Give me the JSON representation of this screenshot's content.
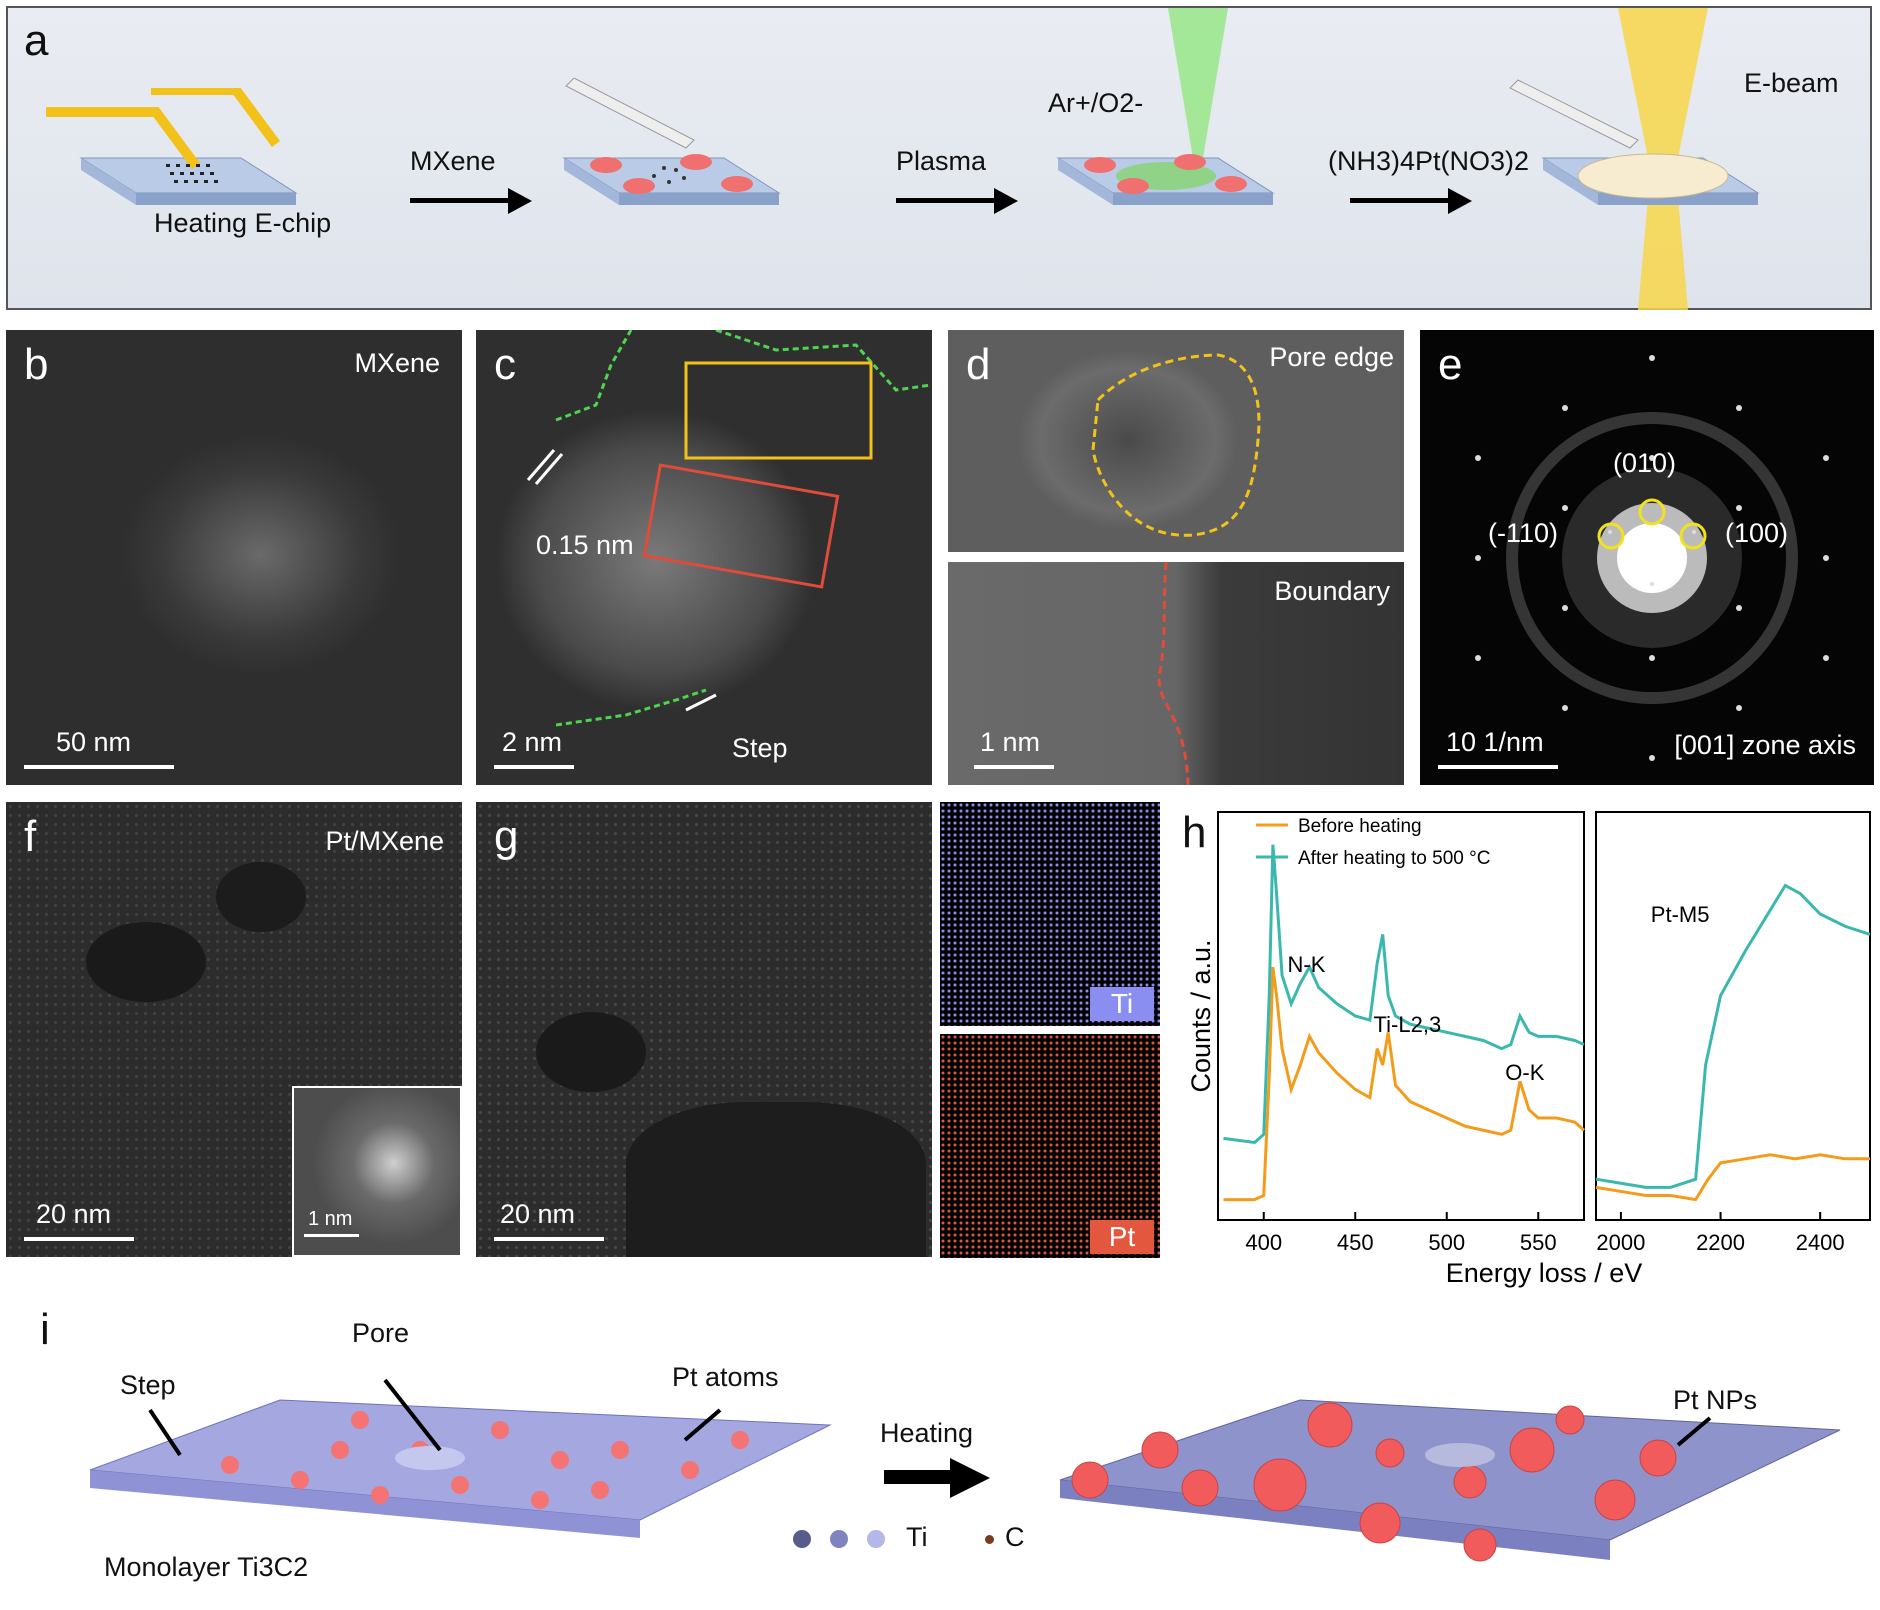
{
  "panel_a": {
    "letter": "a",
    "step_labels": [
      "MXene",
      "Plasma",
      "(NH3)4Pt(NO3)2"
    ],
    "chip_label": "Heating E-chip",
    "plasma_label": "Ar+/O2-",
    "ebeam_label": "E-beam"
  },
  "panel_b": {
    "letter": "b",
    "title": "MXene",
    "scale": "50 nm"
  },
  "panel_c": {
    "letter": "c",
    "spacing": "0.15 nm",
    "step": "Step",
    "scale": "2 nm"
  },
  "panel_d": {
    "letter": "d",
    "top_title": "Pore edge",
    "bottom_title": "Boundary",
    "scale": "1 nm"
  },
  "panel_e": {
    "letter": "e",
    "spots": [
      "(010)",
      "(-110)",
      "(100)"
    ],
    "scale": "10 1/nm",
    "zone": "[001] zone axis"
  },
  "panel_f": {
    "letter": "f",
    "title": "Pt/MXene",
    "scale": "20 nm",
    "inset_scale": "1 nm"
  },
  "panel_g": {
    "letter": "g",
    "scale": "20 nm",
    "map_ti": "Ti",
    "map_pt": "Pt"
  },
  "panel_h": {
    "letter": "h"
  },
  "panel_i": {
    "letter": "i",
    "left_labels": {
      "pore": "Pore",
      "step": "Step",
      "pt_atoms": "Pt atoms",
      "monolayer": "Monolayer Ti3C2"
    },
    "arrow_label": "Heating",
    "legend_ti": "Ti",
    "legend_c": "C",
    "right_labels": {
      "pt_nps": "Pt NPs"
    }
  },
  "colors": {
    "gold": "#f2c21b",
    "orange": "#f39c1c",
    "teal": "#3bb8ad",
    "chip_blue": "#b9cbe6",
    "pink": "#f07070",
    "ti_map": "#8a8ef0",
    "pt_map": "#e2573e"
  },
  "chart_data": [
    {
      "type": "line",
      "title": "",
      "xlabel": "Energy loss / eV",
      "ylabel": "Counts / a.u.",
      "xlim": [
        375,
        575
      ],
      "xticks": [
        400,
        450,
        500,
        550
      ],
      "grid": false,
      "legend": "top-left",
      "annotations": [
        "N-K",
        "Ti-L2,3",
        "O-K"
      ],
      "series": [
        {
          "name": "Before heating",
          "color": "#f39c1c",
          "x": [
            378,
            395,
            400,
            403,
            405,
            407,
            410,
            415,
            420,
            425,
            430,
            440,
            450,
            458,
            462,
            465,
            468,
            472,
            480,
            490,
            500,
            510,
            520,
            530,
            535,
            540,
            545,
            550,
            560,
            570,
            575
          ],
          "y": [
            0.05,
            0.05,
            0.06,
            0.35,
            0.62,
            0.55,
            0.42,
            0.32,
            0.38,
            0.45,
            0.41,
            0.36,
            0.32,
            0.3,
            0.42,
            0.38,
            0.46,
            0.33,
            0.29,
            0.27,
            0.25,
            0.23,
            0.22,
            0.21,
            0.22,
            0.34,
            0.27,
            0.25,
            0.25,
            0.24,
            0.22
          ]
        },
        {
          "name": "After heating to 500 °C",
          "color": "#3bb8ad",
          "x": [
            378,
            395,
            400,
            403,
            405,
            407,
            410,
            415,
            420,
            425,
            430,
            440,
            450,
            458,
            462,
            465,
            468,
            472,
            480,
            490,
            500,
            510,
            520,
            530,
            535,
            540,
            545,
            550,
            560,
            570,
            575
          ],
          "y": [
            0.2,
            0.19,
            0.21,
            0.55,
            0.92,
            0.8,
            0.6,
            0.53,
            0.58,
            0.62,
            0.57,
            0.53,
            0.5,
            0.49,
            0.63,
            0.7,
            0.55,
            0.5,
            0.48,
            0.47,
            0.46,
            0.45,
            0.44,
            0.42,
            0.43,
            0.5,
            0.46,
            0.45,
            0.45,
            0.44,
            0.43
          ]
        }
      ]
    },
    {
      "type": "line",
      "title": "",
      "xlabel": "Energy loss / eV",
      "xlim": [
        1950,
        2500
      ],
      "xticks": [
        2000,
        2200,
        2400
      ],
      "grid": false,
      "annotations": [
        "Pt-M5"
      ],
      "series": [
        {
          "name": "Before heating",
          "color": "#f39c1c",
          "x": [
            1950,
            2000,
            2050,
            2100,
            2150,
            2175,
            2200,
            2250,
            2300,
            2350,
            2400,
            2450,
            2500
          ],
          "y": [
            0.08,
            0.07,
            0.06,
            0.06,
            0.05,
            0.1,
            0.14,
            0.15,
            0.16,
            0.15,
            0.16,
            0.15,
            0.15
          ]
        },
        {
          "name": "After heating to 500 °C",
          "color": "#3bb8ad",
          "x": [
            1950,
            2000,
            2050,
            2100,
            2150,
            2170,
            2200,
            2250,
            2300,
            2330,
            2360,
            2400,
            2450,
            2500
          ],
          "y": [
            0.1,
            0.09,
            0.08,
            0.08,
            0.1,
            0.38,
            0.55,
            0.66,
            0.76,
            0.82,
            0.8,
            0.75,
            0.72,
            0.7
          ]
        }
      ]
    }
  ]
}
